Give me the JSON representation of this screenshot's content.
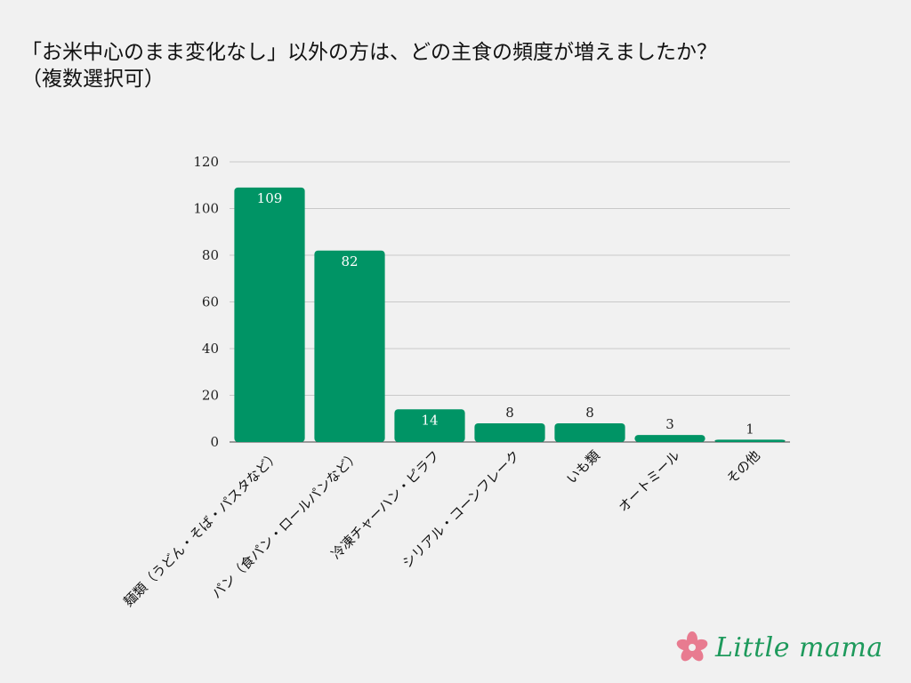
{
  "title": {
    "line1": "「お米中心のまま変化なし」以外の方は、どの主食の頻度が増えましたか？",
    "line2": "（複数選択可）"
  },
  "brand": {
    "name": "Little mama",
    "logo_icon": "flower-icon",
    "color": "#1e9a5c",
    "flower_color": "#e87b90"
  },
  "chart_data": {
    "type": "bar",
    "categories": [
      "麺類（うどん・そば・パスタなど）",
      "パン（食パン・ロールパンなど）",
      "冷凍チャーハン・ピラフ",
      "シリアル・コーンフレーク",
      "いも類",
      "オートミール",
      "その他"
    ],
    "values": [
      109,
      82,
      14,
      8,
      8,
      3,
      1
    ],
    "ylim": [
      0,
      120
    ],
    "yticks": [
      0,
      20,
      40,
      60,
      80,
      100,
      120
    ],
    "grid": true,
    "bar_color": "#009465",
    "xlabel": "",
    "ylabel": ""
  }
}
